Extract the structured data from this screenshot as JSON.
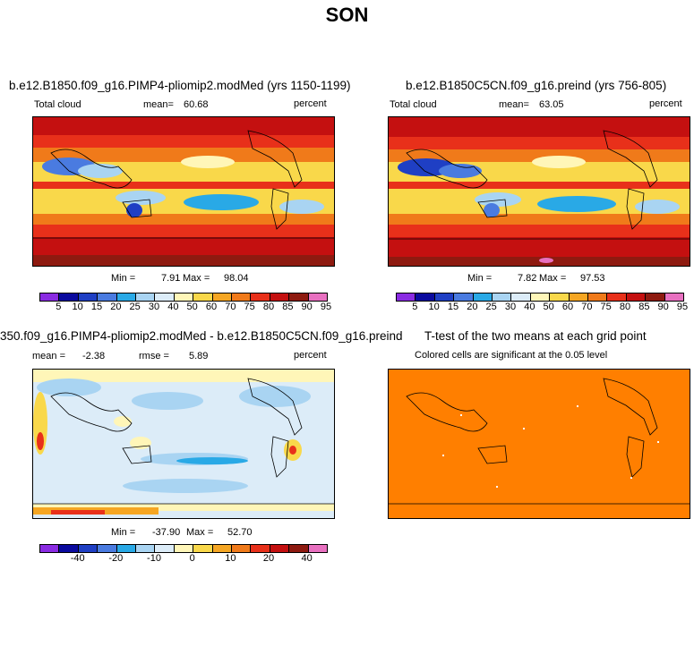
{
  "season": "SON",
  "palette": [
    "#8a2be2",
    "#0a0a9e",
    "#1f3fc4",
    "#4a7be0",
    "#29a9e6",
    "#a9d4f2",
    "#dcecf8",
    "#fff6b8",
    "#f9d84a",
    "#f5a623",
    "#f07a1a",
    "#e8301a",
    "#c41010",
    "#8e1a10",
    "#e870c0"
  ],
  "panels": {
    "a": {
      "title": "b.e12.B1850.f09_g16.PIMP4-pliomip2.modMed (yrs 1150-1199)",
      "variable": "Total cloud",
      "mean_label": "mean=",
      "mean": "60.68",
      "units": "percent",
      "min_label": "Min =",
      "min": "7.91",
      "max_label": "Max =",
      "max": "98.04"
    },
    "b": {
      "title": "b.e12.B1850C5CN.f09_g16.preind (yrs 756-805)",
      "variable": "Total cloud",
      "mean_label": "mean=",
      "mean": "63.05",
      "units": "percent",
      "min_label": "Min =",
      "min": "7.82",
      "max_label": "Max =",
      "max": "97.53"
    },
    "c": {
      "title": "350.f09_g16.PIMP4-pliomip2.modMed - b.e12.B1850C5CN.f09_g16.preind",
      "mean_label": "mean =",
      "mean": "-2.38",
      "rmse_label": "rmse =",
      "rmse": "5.89",
      "units": "percent",
      "min_label": "Min =",
      "min": "-37.90",
      "max_label": "Max =",
      "max": "52.70"
    },
    "d": {
      "title": "T-test of the two means at each grid point",
      "subtitle": "Colored cells are significant at the 0.05 level",
      "fill_color": "#ff7f00"
    }
  },
  "colorbar_abs_ticks": [
    "5",
    "10",
    "15",
    "20",
    "25",
    "30",
    "40",
    "50",
    "60",
    "70",
    "75",
    "80",
    "85",
    "90",
    "95"
  ],
  "colorbar_diff_ticks": [
    "-40",
    "-20",
    "-10",
    "0",
    "10",
    "20",
    "40"
  ]
}
